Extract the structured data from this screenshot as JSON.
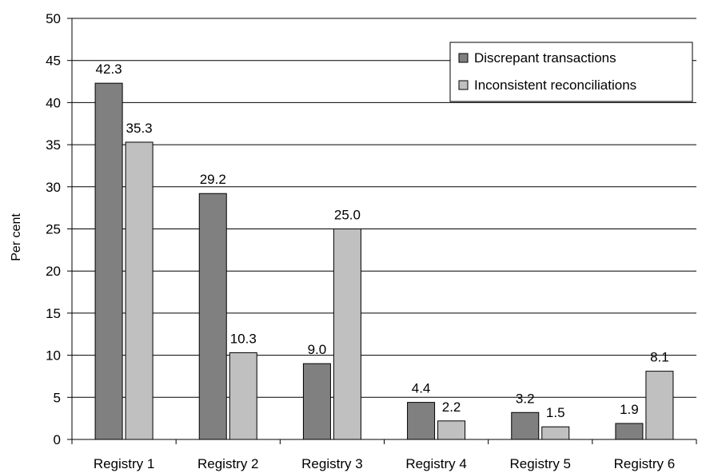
{
  "chart_data": {
    "type": "bar",
    "title": "",
    "xlabel": "",
    "ylabel": "Per cent",
    "ylim": [
      0,
      50
    ],
    "yticks": [
      0,
      5,
      10,
      15,
      20,
      25,
      30,
      35,
      40,
      45,
      50
    ],
    "grid": true,
    "legend_position": "top-right",
    "categories": [
      "Registry 1",
      "Registry 2",
      "Registry 3",
      "Registry 4",
      "Registry 5",
      "Registry 6"
    ],
    "series": [
      {
        "name": "Discrepant transactions",
        "color": "#808080",
        "values": [
          42.3,
          29.2,
          9.0,
          4.4,
          3.2,
          1.9
        ],
        "labels": [
          "42.3",
          "29.2",
          "9.0",
          "4.4",
          "3.2",
          "1.9"
        ]
      },
      {
        "name": "Inconsistent reconciliations",
        "color": "#c0c0c0",
        "values": [
          35.3,
          10.3,
          25.0,
          2.2,
          1.5,
          8.1
        ],
        "labels": [
          "35.3",
          "10.3",
          "25.0",
          "2.2",
          "1.5",
          "8.1"
        ]
      }
    ]
  }
}
